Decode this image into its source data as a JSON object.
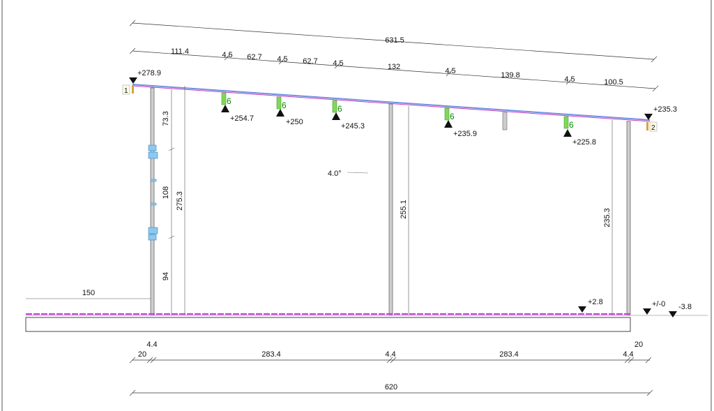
{
  "dimensions": {
    "top_overall": "631.5",
    "top_segments": [
      "111.4",
      "4.5",
      "62.7",
      "4.5",
      "62.7",
      "4.5",
      "132",
      "4.5",
      "139.8",
      "4.5",
      "100.5"
    ],
    "left_upper": "73.3",
    "left_window": "108",
    "left_lower": "94",
    "left_total": "275.3",
    "mid_height": "255.1",
    "right_height": "235.3",
    "ground_extension": "150",
    "bottom_segments": [
      "20",
      "283.4",
      "283.4",
      "20"
    ],
    "bottom_small_left": "4.4",
    "bottom_small_mid": "4.4",
    "bottom_small_right": "4.4",
    "bottom_left_top": "4.4",
    "bottom_right_top": "20",
    "bottom_overall": "620"
  },
  "levels": {
    "roof_left": "+278.9",
    "roof_right": "+235.3",
    "rafter_1": "+254.7",
    "rafter_2": "+250",
    "rafter_3": "+245.3",
    "rafter_4": "+235.9",
    "rafter_5": "+225.8",
    "floor": "+2.8",
    "zero": "+/-0",
    "ground": "-3.8"
  },
  "slope_label": "4.0°",
  "rafter_tag": "6",
  "axis_markers": {
    "left": "1",
    "right": "2"
  },
  "colors": {
    "roof_blue": "#6f8fe0",
    "roof_magenta": "#c23bc2",
    "rafter_green": "#7ed957",
    "window_blue": "#8cc8ef",
    "floor_magenta": "#d040d0"
  }
}
